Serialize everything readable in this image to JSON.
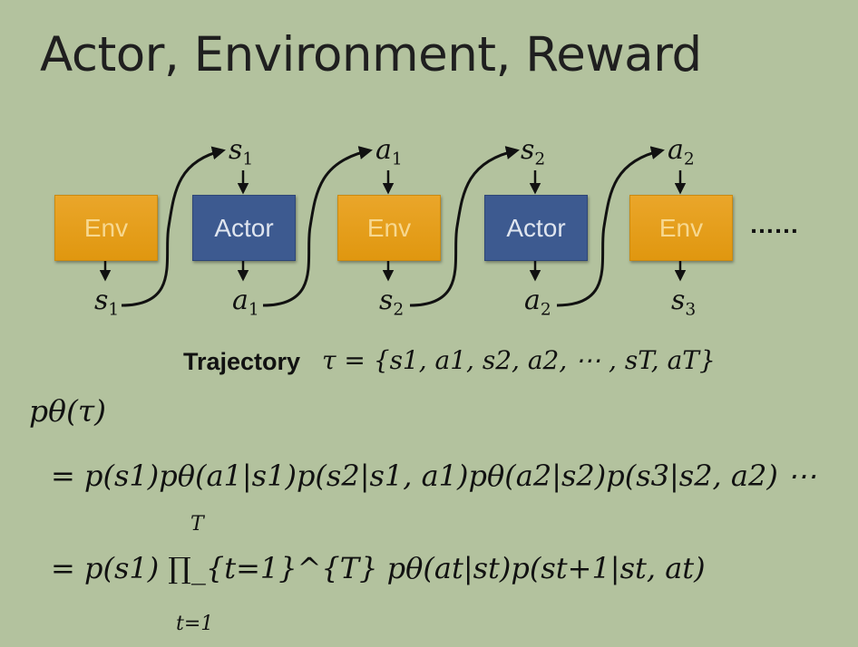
{
  "title": "Actor, Environment, Reward",
  "boxes": [
    {
      "label": "Env",
      "kind": "env"
    },
    {
      "label": "Actor",
      "kind": "actor"
    },
    {
      "label": "Env",
      "kind": "env"
    },
    {
      "label": "Actor",
      "kind": "actor"
    },
    {
      "label": "Env",
      "kind": "env"
    }
  ],
  "top_labels": [
    {
      "base": "s",
      "sub": "1"
    },
    {
      "base": "a",
      "sub": "1"
    },
    {
      "base": "s",
      "sub": "2"
    },
    {
      "base": "a",
      "sub": "2"
    }
  ],
  "bottom_labels": [
    {
      "base": "s",
      "sub": "1"
    },
    {
      "base": "a",
      "sub": "1"
    },
    {
      "base": "s",
      "sub": "2"
    },
    {
      "base": "a",
      "sub": "2"
    },
    {
      "base": "s",
      "sub": "3"
    }
  ],
  "continuation": "……",
  "trajectory": {
    "label": "Trajectory",
    "expression": "τ = {s1, a1, s2, a2, ⋯ , sT, aT}"
  },
  "equations": {
    "lhs": "pθ(τ)",
    "line1": "= p(s1)pθ(a1|s1)p(s2|s1, a1)pθ(a2|s2)p(s3|s2, a2) ⋯",
    "line2": "= p(s1) ∏_{t=1}^{T} pθ(at|st)p(st+1|st, at)",
    "product_upper": "T",
    "product_lower": "t=1"
  }
}
